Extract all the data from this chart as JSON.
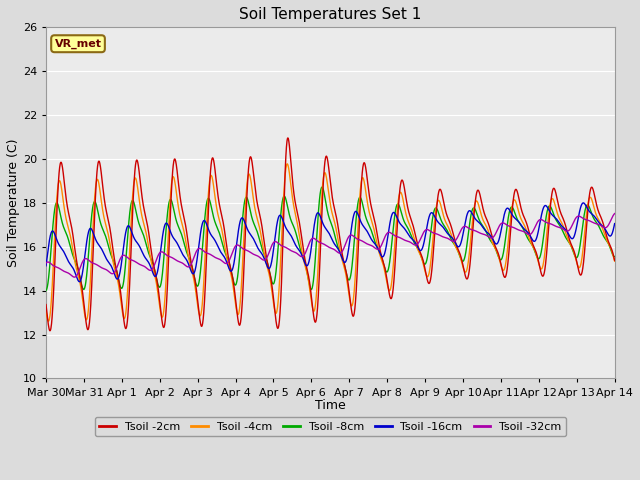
{
  "title": "Soil Temperatures Set 1",
  "xlabel": "Time",
  "ylabel": "Soil Temperature (C)",
  "ylim": [
    10,
    26
  ],
  "xlim": [
    0,
    15
  ],
  "fig_width": 6.4,
  "fig_height": 4.8,
  "dpi": 100,
  "background_color": "#dcdcdc",
  "plot_bg_color": "#ebebeb",
  "annotation_text": "VR_met",
  "annotation_bg": "#ffff99",
  "annotation_border": "#8B6914",
  "series_colors": {
    "Tsoil -2cm": "#cc0000",
    "Tsoil -4cm": "#ff8c00",
    "Tsoil -8cm": "#00aa00",
    "Tsoil -16cm": "#0000cc",
    "Tsoil -32cm": "#aa00aa"
  },
  "tick_labels": [
    "Mar 30",
    "Mar 31",
    "Apr 1",
    "Apr 2",
    "Apr 3",
    "Apr 4",
    "Apr 5",
    "Apr 6",
    "Apr 7",
    "Apr 8",
    "Apr 9",
    "Apr 10",
    "Apr 11",
    "Apr 12",
    "Apr 13",
    "Apr 14"
  ],
  "tick_positions": [
    0,
    1,
    2,
    3,
    4,
    5,
    6,
    7,
    8,
    9,
    10,
    11,
    12,
    13,
    14,
    15
  ],
  "yticks": [
    10,
    12,
    14,
    16,
    18,
    20,
    22,
    24,
    26
  ]
}
